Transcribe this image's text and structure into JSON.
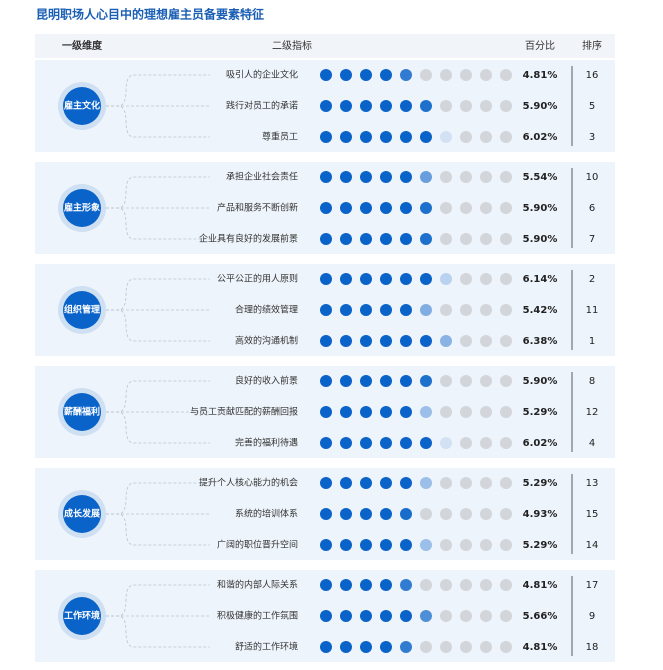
{
  "title": "昆明职场人心目中的理想雇主员备要素特征",
  "header": {
    "dimension": "一级维度",
    "indicator": "二级指标",
    "percent": "百分比",
    "rank": "排序"
  },
  "groups": [
    {
      "name": "雇主文化",
      "rows": [
        {
          "indicator": "吸引人的企业文化",
          "percent": {
            "value": 4.81,
            "label": "4.81%"
          },
          "rank": 16
        },
        {
          "indicator": "践行对员工的承诺",
          "percent": {
            "value": 5.9,
            "label": "5.90%"
          },
          "rank": 5
        },
        {
          "indicator": "尊重员工",
          "percent": {
            "value": 6.02,
            "label": "6.02%"
          },
          "rank": 3
        }
      ]
    },
    {
      "name": "雇主形象",
      "rows": [
        {
          "indicator": "承担企业社会责任",
          "percent": {
            "value": 5.54,
            "label": "5.54%"
          },
          "rank": 10
        },
        {
          "indicator": "产品和服务不断创新",
          "percent": {
            "value": 5.9,
            "label": "5.90%"
          },
          "rank": 6
        },
        {
          "indicator": "企业具有良好的发展前景",
          "percent": {
            "value": 5.9,
            "label": "5.90%"
          },
          "rank": 7
        }
      ]
    },
    {
      "name": "组织管理",
      "rows": [
        {
          "indicator": "公平公正的用人原则",
          "percent": {
            "value": 6.14,
            "label": "6.14%"
          },
          "rank": 2
        },
        {
          "indicator": "合理的绩效管理",
          "percent": {
            "value": 5.42,
            "label": "5.42%"
          },
          "rank": 11
        },
        {
          "indicator": "高效的沟通机制",
          "percent": {
            "value": 6.38,
            "label": "6.38%"
          },
          "rank": 1
        }
      ]
    },
    {
      "name": "薪酬福利",
      "rows": [
        {
          "indicator": "良好的收入前景",
          "percent": {
            "value": 5.9,
            "label": "5.90%"
          },
          "rank": 8
        },
        {
          "indicator": "与员工贡献匹配的薪酬回报",
          "percent": {
            "value": 5.29,
            "label": "5.29%"
          },
          "rank": 12
        },
        {
          "indicator": "完善的福利待遇",
          "percent": {
            "value": 6.02,
            "label": "6.02%"
          },
          "rank": 4
        }
      ]
    },
    {
      "name": "成长发展",
      "rows": [
        {
          "indicator": "提升个人核心能力的机会",
          "percent": {
            "value": 5.29,
            "label": "5.29%"
          },
          "rank": 13
        },
        {
          "indicator": "系统的培训体系",
          "percent": {
            "value": 4.93,
            "label": "4.93%"
          },
          "rank": 15
        },
        {
          "indicator": "广阔的职位晋升空间",
          "percent": {
            "value": 5.29,
            "label": "5.29%"
          },
          "rank": 14
        }
      ]
    },
    {
      "name": "工作环境",
      "rows": [
        {
          "indicator": "和谐的内部人际关系",
          "percent": {
            "value": 4.81,
            "label": "4.81%"
          },
          "rank": 17
        },
        {
          "indicator": "积极健康的工作氛围",
          "percent": {
            "value": 5.66,
            "label": "5.66%"
          },
          "rank": 9
        },
        {
          "indicator": "舒适的工作环境",
          "percent": {
            "value": 4.81,
            "label": "4.81%"
          },
          "rank": 18
        }
      ]
    }
  ]
}
